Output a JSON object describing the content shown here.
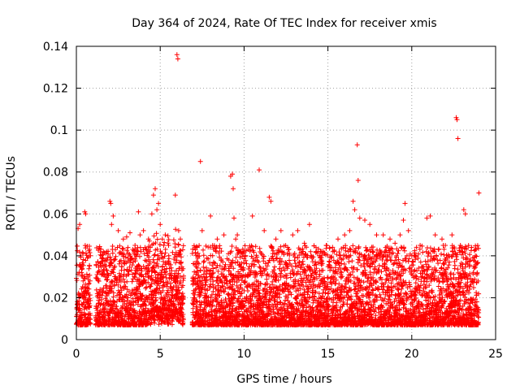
{
  "chart_data": {
    "type": "scatter",
    "title": "Day 364 of 2024, Rate Of TEC Index for receiver xmis",
    "xlabel": "GPS time / hours",
    "ylabel": "ROTI / TECUs",
    "xlim": [
      0,
      25
    ],
    "ylim": [
      0,
      0.14
    ],
    "x_ticks": [
      0,
      5,
      10,
      15,
      20,
      25
    ],
    "x_tick_labels": [
      "0",
      "5",
      "10",
      "15",
      "20",
      "25"
    ],
    "y_ticks": [
      0,
      0.02,
      0.04,
      0.06,
      0.08,
      0.1,
      0.12,
      0.14
    ],
    "y_tick_labels": [
      "0",
      "0.02",
      "0.04",
      "0.06",
      "0.08",
      "0.1",
      "0.12",
      "0.14"
    ],
    "grid": true,
    "marker": "+",
    "color": "#ff0000",
    "data_gaps_hours": [
      [
        0.85,
        1.15
      ],
      [
        6.4,
        6.9
      ]
    ],
    "series": [
      {
        "name": "ROTI",
        "points": [
          [
            0.05,
            0.012
          ],
          [
            0.1,
            0.053
          ],
          [
            0.2,
            0.055
          ],
          [
            0.3,
            0.032
          ],
          [
            0.35,
            0.036
          ],
          [
            0.4,
            0.028
          ],
          [
            0.5,
            0.061
          ],
          [
            0.55,
            0.06
          ],
          [
            0.6,
            0.022
          ],
          [
            0.7,
            0.018
          ],
          [
            1.3,
            0.029
          ],
          [
            1.5,
            0.031
          ],
          [
            1.7,
            0.035
          ],
          [
            1.8,
            0.042
          ],
          [
            2.0,
            0.066
          ],
          [
            2.05,
            0.065
          ],
          [
            2.1,
            0.055
          ],
          [
            2.2,
            0.059
          ],
          [
            2.5,
            0.052
          ],
          [
            2.8,
            0.048
          ],
          [
            3.0,
            0.049
          ],
          [
            3.2,
            0.051
          ],
          [
            3.5,
            0.045
          ],
          [
            3.7,
            0.061
          ],
          [
            3.8,
            0.05
          ],
          [
            4.0,
            0.052
          ],
          [
            4.3,
            0.048
          ],
          [
            4.5,
            0.06
          ],
          [
            4.6,
            0.069
          ],
          [
            4.7,
            0.072
          ],
          [
            4.8,
            0.062
          ],
          [
            4.9,
            0.065
          ],
          [
            5.0,
            0.055
          ],
          [
            5.3,
            0.05
          ],
          [
            5.5,
            0.045
          ],
          [
            5.9,
            0.069
          ],
          [
            6.0,
            0.136
          ],
          [
            6.05,
            0.134
          ],
          [
            6.1,
            0.052
          ],
          [
            6.2,
            0.048
          ],
          [
            7.0,
            0.028
          ],
          [
            7.2,
            0.044
          ],
          [
            7.4,
            0.085
          ],
          [
            7.5,
            0.052
          ],
          [
            8.0,
            0.059
          ],
          [
            8.4,
            0.048
          ],
          [
            8.8,
            0.05
          ],
          [
            9.2,
            0.078
          ],
          [
            9.3,
            0.079
          ],
          [
            9.35,
            0.072
          ],
          [
            9.4,
            0.058
          ],
          [
            9.5,
            0.048
          ],
          [
            9.6,
            0.05
          ],
          [
            10.0,
            0.042
          ],
          [
            10.5,
            0.059
          ],
          [
            10.9,
            0.081
          ],
          [
            11.2,
            0.052
          ],
          [
            11.5,
            0.068
          ],
          [
            11.6,
            0.066
          ],
          [
            11.9,
            0.048
          ],
          [
            12.2,
            0.052
          ],
          [
            12.6,
            0.044
          ],
          [
            12.9,
            0.05
          ],
          [
            13.2,
            0.052
          ],
          [
            13.6,
            0.046
          ],
          [
            13.9,
            0.055
          ],
          [
            14.3,
            0.042
          ],
          [
            14.6,
            0.038
          ],
          [
            14.9,
            0.045
          ],
          [
            15.3,
            0.042
          ],
          [
            15.6,
            0.048
          ],
          [
            16.0,
            0.05
          ],
          [
            16.3,
            0.052
          ],
          [
            16.5,
            0.066
          ],
          [
            16.6,
            0.062
          ],
          [
            16.75,
            0.093
          ],
          [
            16.8,
            0.076
          ],
          [
            16.9,
            0.058
          ],
          [
            17.2,
            0.057
          ],
          [
            17.5,
            0.055
          ],
          [
            17.9,
            0.05
          ],
          [
            18.3,
            0.05
          ],
          [
            18.7,
            0.048
          ],
          [
            19.0,
            0.046
          ],
          [
            19.3,
            0.05
          ],
          [
            19.5,
            0.057
          ],
          [
            19.6,
            0.065
          ],
          [
            19.8,
            0.052
          ],
          [
            20.2,
            0.04
          ],
          [
            20.5,
            0.045
          ],
          [
            20.9,
            0.058
          ],
          [
            21.1,
            0.059
          ],
          [
            21.4,
            0.05
          ],
          [
            21.8,
            0.048
          ],
          [
            22.0,
            0.045
          ],
          [
            22.4,
            0.05
          ],
          [
            22.65,
            0.106
          ],
          [
            22.7,
            0.105
          ],
          [
            22.75,
            0.096
          ],
          [
            22.9,
            0.045
          ],
          [
            23.1,
            0.062
          ],
          [
            23.2,
            0.06
          ],
          [
            23.5,
            0.038
          ],
          [
            23.8,
            0.04
          ],
          [
            24.0,
            0.07
          ]
        ]
      }
    ]
  }
}
